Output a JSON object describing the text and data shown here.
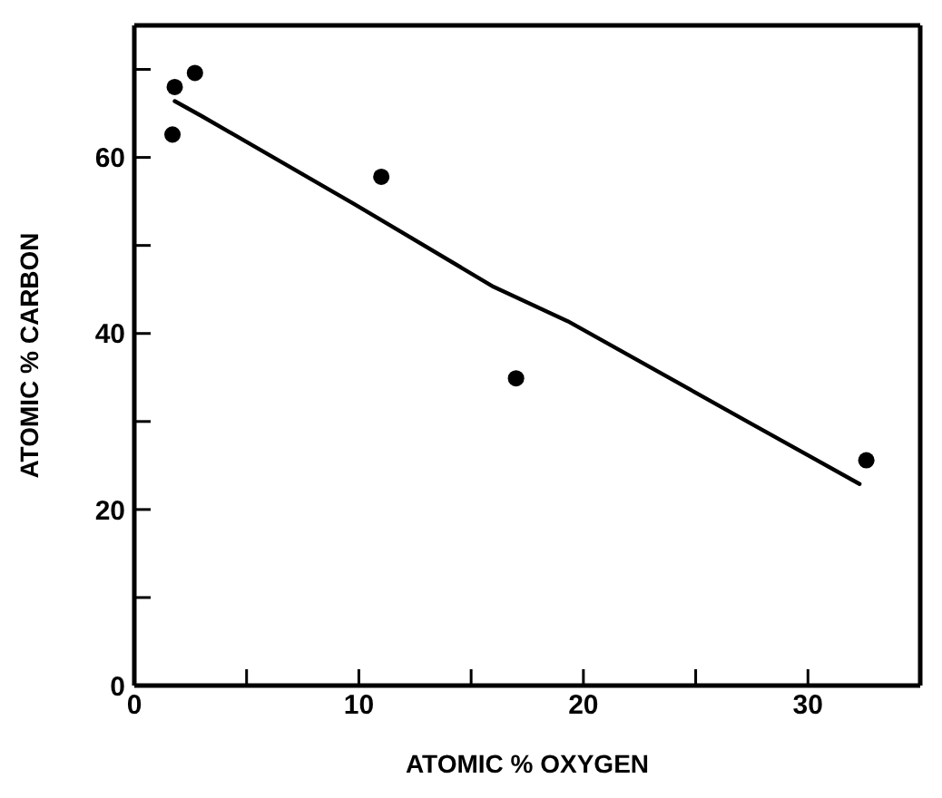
{
  "chart_data": {
    "type": "scatter",
    "xlabel": "ATOMIC % OXYGEN",
    "ylabel": "ATOMIC % CARBON",
    "xlim": [
      0,
      35
    ],
    "ylim": [
      0,
      75
    ],
    "xticks": [
      0,
      {
        "value": 5,
        "label": null
      },
      10,
      {
        "value": 15,
        "label": null
      },
      20,
      {
        "value": 25,
        "label": null
      },
      30
    ],
    "yticks": [
      0,
      {
        "value": 10,
        "label": null
      },
      20,
      {
        "value": 30,
        "label": null
      },
      40,
      {
        "value": 50,
        "label": null
      },
      60,
      {
        "value": 70,
        "label": null
      }
    ],
    "series": [
      {
        "color": "#000000",
        "marker": "circle",
        "x": [
          1.8,
          1.7,
          2.7,
          11.0,
          17.0,
          32.6
        ],
        "values": [
          68.0,
          62.6,
          69.6,
          57.8,
          34.9,
          25.6
        ]
      },
      {
        "type": "line",
        "color": "#000000",
        "marker": "none",
        "line_style": "solid",
        "x": [
          1.8,
          3.0,
          9.8,
          16.0,
          19.3,
          27.3,
          32.3
        ],
        "values": [
          66.4,
          64.7,
          54.7,
          45.3,
          41.4,
          30.0,
          22.9
        ]
      }
    ]
  }
}
